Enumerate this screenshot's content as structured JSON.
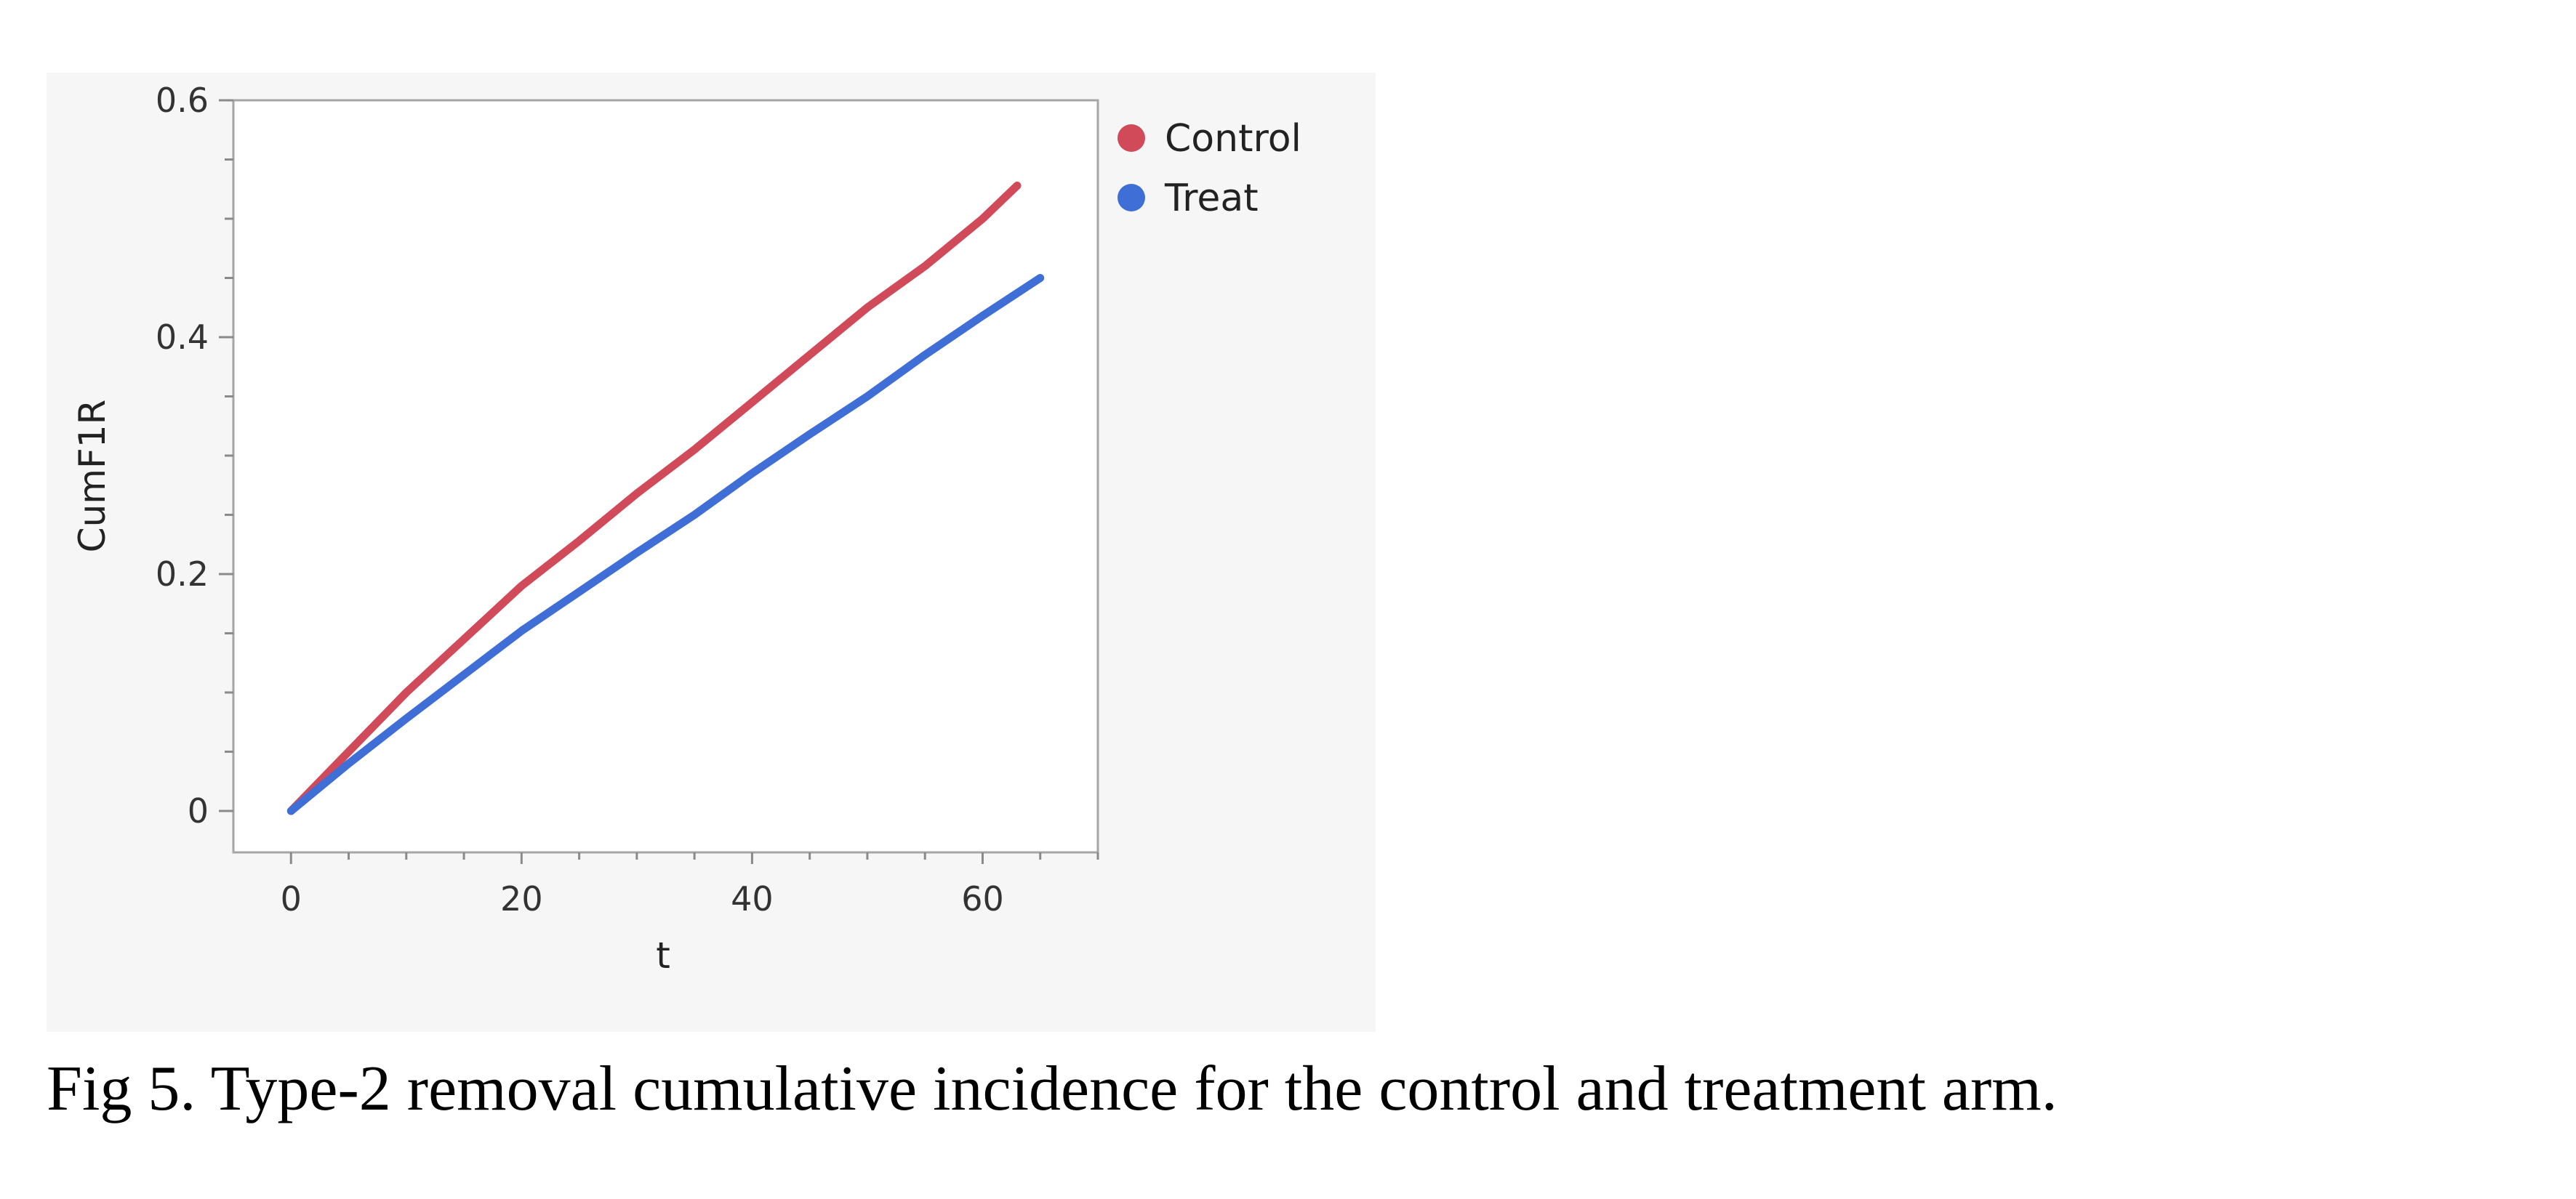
{
  "caption": "Fig 5. Type-2 removal cumulative incidence for the control and treatment arm.",
  "chart_data": {
    "type": "line",
    "title": "",
    "xlabel": "t",
    "ylabel": "CumF1R",
    "xlim": [
      -5,
      70
    ],
    "ylim": [
      -0.035,
      0.6
    ],
    "x_ticks": [
      0,
      20,
      40,
      60
    ],
    "y_ticks": [
      0,
      0.2,
      0.4,
      0.6
    ],
    "y_tick_labels": [
      "0",
      "0.2",
      "0.4",
      "0.6"
    ],
    "legend_position": "right",
    "grid": false,
    "series": [
      {
        "name": "Control",
        "color": "#d14a5a",
        "x": [
          0,
          5,
          10,
          15,
          20,
          25,
          30,
          35,
          40,
          45,
          50,
          55,
          60,
          63
        ],
        "y": [
          0,
          0.05,
          0.1,
          0.145,
          0.19,
          0.228,
          0.268,
          0.305,
          0.345,
          0.385,
          0.425,
          0.46,
          0.5,
          0.528
        ]
      },
      {
        "name": "Treat",
        "color": "#3f6ed6",
        "x": [
          0,
          5,
          10,
          15,
          20,
          25,
          30,
          35,
          40,
          45,
          50,
          55,
          60,
          65
        ],
        "y": [
          0,
          0.04,
          0.078,
          0.115,
          0.152,
          0.185,
          0.218,
          0.25,
          0.285,
          0.318,
          0.35,
          0.385,
          0.418,
          0.45
        ]
      }
    ]
  }
}
